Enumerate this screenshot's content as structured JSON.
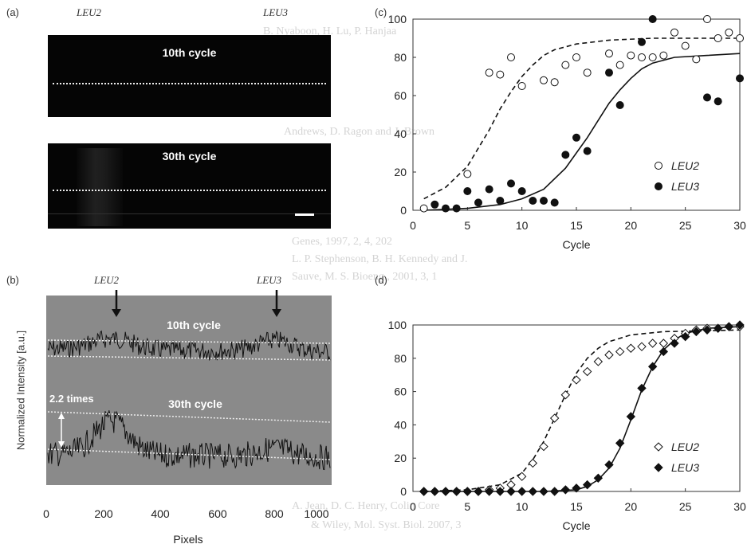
{
  "background_text": [
    "B. Nyaboon, H. Lu, P. Hanjaa",
    "Andrews, D. Ragon and J. Brown",
    "Genes, 1997, 2, 4, 202",
    "L. P. Stephenson, B. H. Kennedy and J.",
    "Sauve, M. S. Bioeng., 2001, 3, 1",
    "A. Jean, D. C. Henry, Colin Core",
    "& Wiley, Mol. Syst. Biol. 2007, 3"
  ],
  "panel_a": {
    "label": "(a)",
    "leu2_label": "LEU2",
    "leu3_label": "LEU3",
    "top_title": "10th cycle",
    "bottom_title": "30th cycle"
  },
  "panel_b": {
    "label": "(b)",
    "leu2_label": "LEU2",
    "leu3_label": "LEU3",
    "trace_top_label": "10th cycle",
    "trace_bottom_label": "30th cycle",
    "ratio_label": "2.2 times",
    "xlabel": "Pixels",
    "ylabel": "Normalized Intensity [a.u.]",
    "xticks": [
      "0",
      "200",
      "400",
      "600",
      "800",
      "1000"
    ]
  },
  "panel_c": {
    "label": "(c)"
  },
  "panel_d": {
    "label": "(d)"
  },
  "chart_data": [
    {
      "id": "c",
      "type": "scatter",
      "xlabel": "Cycle",
      "xlim": [
        0,
        30
      ],
      "ylim": [
        0,
        100
      ],
      "xticks": [
        0,
        5,
        10,
        15,
        20,
        25,
        30
      ],
      "yticks": [
        0,
        20,
        40,
        60,
        80,
        100
      ],
      "legend_position": "bottom-right",
      "series": [
        {
          "name": "LEU2",
          "marker": "open-circle",
          "points": [
            [
              1,
              1
            ],
            [
              5,
              19
            ],
            [
              7,
              72
            ],
            [
              8,
              71
            ],
            [
              9,
              80
            ],
            [
              10,
              65
            ],
            [
              12,
              68
            ],
            [
              13,
              67
            ],
            [
              14,
              76
            ],
            [
              15,
              80
            ],
            [
              16,
              72
            ],
            [
              18,
              82
            ],
            [
              19,
              76
            ],
            [
              20,
              81
            ],
            [
              21,
              80
            ],
            [
              22,
              80
            ],
            [
              23,
              81
            ],
            [
              24,
              93
            ],
            [
              25,
              86
            ],
            [
              26,
              79
            ],
            [
              27,
              100
            ],
            [
              28,
              90
            ],
            [
              29,
              93
            ],
            [
              30,
              90
            ]
          ]
        },
        {
          "name": "LEU3",
          "marker": "filled-circle",
          "points": [
            [
              2,
              3
            ],
            [
              3,
              1
            ],
            [
              4,
              1
            ],
            [
              5,
              10
            ],
            [
              6,
              4
            ],
            [
              7,
              11
            ],
            [
              8,
              5
            ],
            [
              9,
              14
            ],
            [
              10,
              10
            ],
            [
              11,
              5
            ],
            [
              12,
              5
            ],
            [
              13,
              4
            ],
            [
              14,
              29
            ],
            [
              15,
              38
            ],
            [
              16,
              31
            ],
            [
              18,
              72
            ],
            [
              19,
              55
            ],
            [
              21,
              88
            ],
            [
              22,
              100
            ],
            [
              27,
              59
            ],
            [
              28,
              57
            ],
            [
              30,
              69
            ]
          ]
        }
      ],
      "fits": [
        {
          "series": "LEU2",
          "style": "dashed",
          "points": [
            [
              1,
              6
            ],
            [
              3,
              12
            ],
            [
              5,
              23
            ],
            [
              7,
              42
            ],
            [
              8,
              53
            ],
            [
              9,
              62
            ],
            [
              10,
              70
            ],
            [
              11,
              76
            ],
            [
              12,
              81
            ],
            [
              13,
              84
            ],
            [
              15,
              87
            ],
            [
              18,
              89
            ],
            [
              22,
              90
            ],
            [
              30,
              90
            ]
          ]
        },
        {
          "series": "LEU3",
          "style": "solid",
          "points": [
            [
              1,
              0
            ],
            [
              5,
              1
            ],
            [
              8,
              3
            ],
            [
              10,
              6
            ],
            [
              12,
              11
            ],
            [
              14,
              22
            ],
            [
              15,
              30
            ],
            [
              16,
              38
            ],
            [
              17,
              47
            ],
            [
              18,
              56
            ],
            [
              19,
              63
            ],
            [
              20,
              69
            ],
            [
              21,
              74
            ],
            [
              22,
              77
            ],
            [
              24,
              80
            ],
            [
              27,
              81
            ],
            [
              30,
              82
            ]
          ]
        }
      ]
    },
    {
      "id": "d",
      "type": "scatter",
      "xlabel": "Cycle",
      "xlim": [
        0,
        30
      ],
      "ylim": [
        0,
        100
      ],
      "xticks": [
        0,
        5,
        10,
        15,
        20,
        25,
        30
      ],
      "yticks": [
        0,
        20,
        40,
        60,
        80,
        100
      ],
      "legend_position": "bottom-right",
      "series": [
        {
          "name": "LEU2",
          "marker": "open-diamond",
          "points": [
            [
              1,
              0
            ],
            [
              2,
              0
            ],
            [
              3,
              0
            ],
            [
              4,
              0
            ],
            [
              5,
              0
            ],
            [
              6,
              0
            ],
            [
              7,
              1
            ],
            [
              8,
              2
            ],
            [
              9,
              4
            ],
            [
              10,
              9
            ],
            [
              11,
              17
            ],
            [
              12,
              27
            ],
            [
              13,
              44
            ],
            [
              14,
              58
            ],
            [
              15,
              67
            ],
            [
              16,
              72
            ],
            [
              17,
              78
            ],
            [
              18,
              82
            ],
            [
              19,
              84
            ],
            [
              20,
              86
            ],
            [
              21,
              87
            ],
            [
              22,
              89
            ],
            [
              23,
              89
            ],
            [
              24,
              92
            ],
            [
              25,
              95
            ],
            [
              26,
              97
            ],
            [
              27,
              98
            ],
            [
              28,
              98
            ],
            [
              29,
              99
            ],
            [
              30,
              99
            ]
          ]
        },
        {
          "name": "LEU3",
          "marker": "filled-diamond",
          "points": [
            [
              1,
              0
            ],
            [
              2,
              0
            ],
            [
              3,
              0
            ],
            [
              4,
              0
            ],
            [
              5,
              0
            ],
            [
              6,
              0
            ],
            [
              7,
              0
            ],
            [
              8,
              0
            ],
            [
              9,
              0
            ],
            [
              10,
              0
            ],
            [
              11,
              0
            ],
            [
              12,
              0
            ],
            [
              13,
              0
            ],
            [
              14,
              1
            ],
            [
              15,
              2
            ],
            [
              16,
              4
            ],
            [
              17,
              8
            ],
            [
              18,
              16
            ],
            [
              19,
              29
            ],
            [
              20,
              45
            ],
            [
              21,
              62
            ],
            [
              22,
              75
            ],
            [
              23,
              84
            ],
            [
              24,
              89
            ],
            [
              25,
              93
            ],
            [
              26,
              96
            ],
            [
              27,
              97
            ],
            [
              28,
              98
            ],
            [
              29,
              99
            ],
            [
              30,
              100
            ]
          ]
        }
      ],
      "fits": [
        {
          "series": "LEU2",
          "style": "dashed",
          "points": [
            [
              1,
              0
            ],
            [
              5,
              1
            ],
            [
              8,
              4
            ],
            [
              10,
              11
            ],
            [
              11,
              19
            ],
            [
              12,
              30
            ],
            [
              13,
              44
            ],
            [
              14,
              58
            ],
            [
              15,
              71
            ],
            [
              16,
              80
            ],
            [
              17,
              86
            ],
            [
              18,
              90
            ],
            [
              20,
              94
            ],
            [
              23,
              96
            ],
            [
              30,
              97
            ]
          ]
        },
        {
          "series": "LEU3",
          "style": "solid",
          "points": [
            [
              1,
              0
            ],
            [
              12,
              0
            ],
            [
              15,
              1
            ],
            [
              16,
              3
            ],
            [
              17,
              7
            ],
            [
              18,
              14
            ],
            [
              19,
              26
            ],
            [
              20,
              43
            ],
            [
              21,
              61
            ],
            [
              22,
              75
            ],
            [
              23,
              85
            ],
            [
              24,
              91
            ],
            [
              25,
              95
            ],
            [
              27,
              98
            ],
            [
              30,
              99
            ]
          ]
        }
      ]
    }
  ]
}
